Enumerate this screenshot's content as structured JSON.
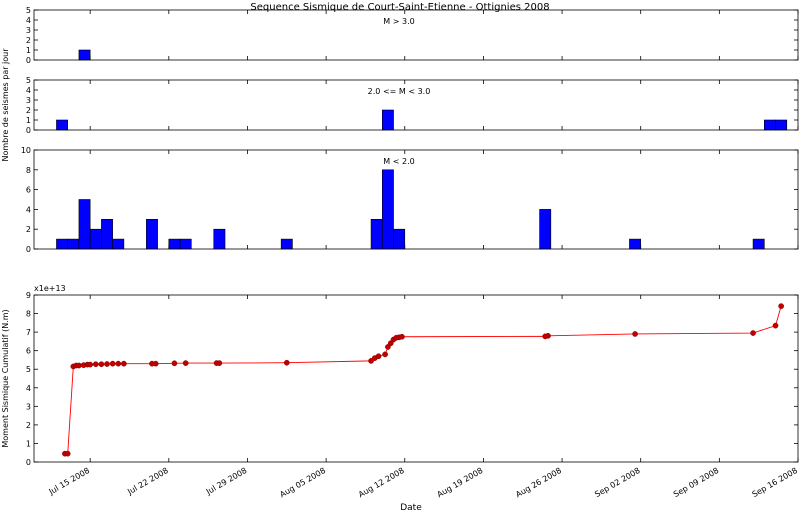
{
  "title": "Sequence Sismique de Court-Saint-Etienne - Ottignies 2008",
  "xlabel": "Date",
  "colors": {
    "bar_fill": "#0000ff",
    "line": "#ff0000",
    "marker": "#bf0000"
  },
  "chart_data": [
    {
      "type": "bar",
      "panel": "M > 3.0",
      "annotation": "M > 3.0",
      "ylabel": "",
      "ylim": [
        0,
        5
      ],
      "yticks": [
        0,
        1,
        2,
        3,
        4,
        5
      ],
      "x_unit": "day",
      "x": [
        "2008-07-14"
      ],
      "values": [
        1
      ]
    },
    {
      "type": "bar",
      "panel": "2.0 <= M < 3.0",
      "annotation": "2.0 <= M < 3.0",
      "ylabel": "Nombre de seismes par jour",
      "ylim": [
        0,
        5
      ],
      "yticks": [
        0,
        1,
        2,
        3,
        4,
        5
      ],
      "x_unit": "day",
      "x": [
        "2008-07-12",
        "2008-08-10",
        "2008-09-13",
        "2008-09-14"
      ],
      "values": [
        1,
        2,
        1,
        1
      ]
    },
    {
      "type": "bar",
      "panel": "M < 2.0",
      "annotation": "M < 2.0",
      "ylabel": "",
      "ylim": [
        0,
        10
      ],
      "yticks": [
        0,
        2,
        4,
        6,
        8,
        10
      ],
      "x_unit": "day",
      "x": [
        "2008-07-12",
        "2008-07-13",
        "2008-07-14",
        "2008-07-15",
        "2008-07-16",
        "2008-07-17",
        "2008-07-20",
        "2008-07-22",
        "2008-07-23",
        "2008-07-26",
        "2008-08-01",
        "2008-08-09",
        "2008-08-10",
        "2008-08-11",
        "2008-08-24",
        "2008-09-01",
        "2008-09-12"
      ],
      "values": [
        1,
        1,
        5,
        2,
        3,
        1,
        3,
        1,
        1,
        2,
        1,
        3,
        8,
        2,
        4,
        1,
        1
      ]
    },
    {
      "type": "line",
      "panel": "cumulative-moment",
      "ylabel": "Moment Sismique Cumulatif (N.m)",
      "scale_label": "x1e+13",
      "ylim": [
        0,
        9
      ],
      "yticks": [
        0,
        1,
        2,
        3,
        4,
        5,
        6,
        7,
        8,
        9
      ],
      "xlim": [
        "2008-07-10",
        "2008-09-16"
      ],
      "xticks": [
        "2008-07-15",
        "2008-07-22",
        "2008-07-29",
        "2008-08-05",
        "2008-08-12",
        "2008-08-19",
        "2008-08-26",
        "2008-09-02",
        "2008-09-09",
        "2008-09-16"
      ],
      "xticklabels": [
        "Jul 15 2008",
        "Jul 22 2008",
        "Jul 29 2008",
        "Aug 05 2008",
        "Aug 12 2008",
        "Aug 19 2008",
        "Aug 26 2008",
        "Sep 02 2008",
        "Sep 09 2008",
        "Sep 16 2008"
      ],
      "x": [
        "2008-07-12 18:00",
        "2008-07-13 00:00",
        "2008-07-13 12:00",
        "2008-07-13 18:00",
        "2008-07-14 00:00",
        "2008-07-14 10:00",
        "2008-07-14 18:00",
        "2008-07-15 00:00",
        "2008-07-15 12:00",
        "2008-07-16 00:00",
        "2008-07-16 12:00",
        "2008-07-17 00:00",
        "2008-07-17 12:00",
        "2008-07-18 00:00",
        "2008-07-20 12:00",
        "2008-07-20 20:00",
        "2008-07-22 12:00",
        "2008-07-23 12:00",
        "2008-07-26 06:00",
        "2008-07-26 12:00",
        "2008-08-01 12:00",
        "2008-08-09 00:00",
        "2008-08-09 08:00",
        "2008-08-09 16:00",
        "2008-08-10 06:00",
        "2008-08-10 12:00",
        "2008-08-10 18:00",
        "2008-08-11 00:00",
        "2008-08-11 06:00",
        "2008-08-11 12:00",
        "2008-08-11 18:00",
        "2008-08-24 12:00",
        "2008-08-24 18:00",
        "2008-09-01 12:00",
        "2008-09-12 00:00",
        "2008-09-14 00:00",
        "2008-09-14 12:00"
      ],
      "values": [
        0.45,
        0.45,
        5.15,
        5.2,
        5.2,
        5.22,
        5.25,
        5.25,
        5.27,
        5.27,
        5.28,
        5.3,
        5.3,
        5.3,
        5.3,
        5.3,
        5.32,
        5.33,
        5.33,
        5.33,
        5.35,
        5.45,
        5.6,
        5.7,
        5.8,
        6.2,
        6.4,
        6.6,
        6.7,
        6.72,
        6.75,
        6.77,
        6.8,
        6.9,
        6.95,
        7.35,
        8.4
      ]
    }
  ]
}
